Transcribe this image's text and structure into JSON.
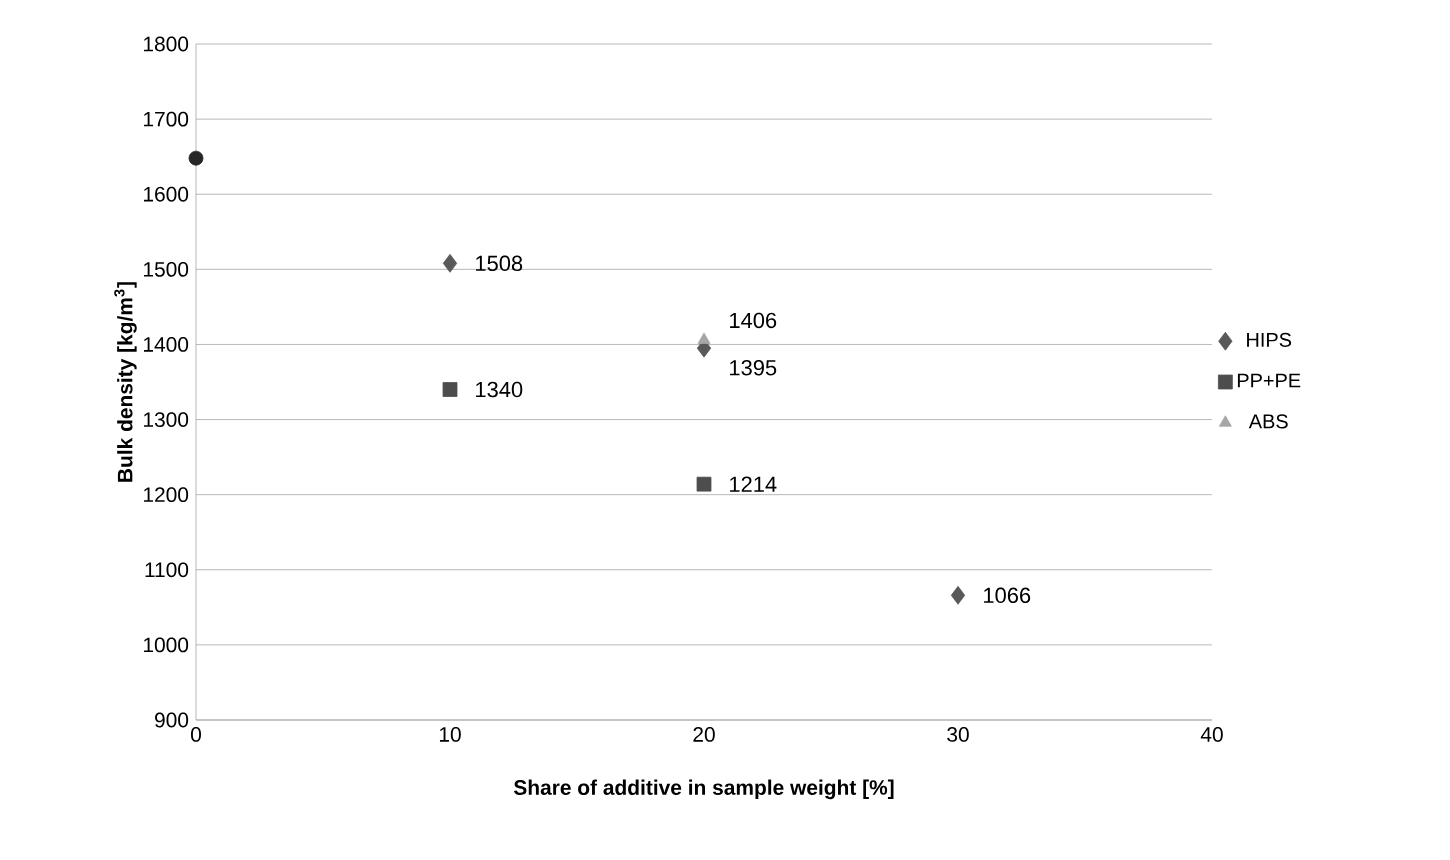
{
  "chart_data": {
    "type": "scatter",
    "xlabel": "Share of additive in sample weight [%]",
    "ylabel": "Bulk density [kg/m$^{3}$]",
    "xlim": [
      0,
      40
    ],
    "xticks": [
      0,
      10,
      20,
      30,
      40
    ],
    "ylim": [
      900,
      1800
    ],
    "yticks": [
      900,
      1000,
      1100,
      1200,
      1300,
      1400,
      1500,
      1600,
      1700,
      1800
    ],
    "grid": "y",
    "legend": "right",
    "series": [
      {
        "name": "HIPS",
        "color": "#595959",
        "marker": "diamond",
        "x": [
          10,
          20,
          30
        ],
        "values": [
          1508,
          1395,
          1066
        ],
        "value_labels": [
          "1508",
          "1395",
          "1066"
        ]
      },
      {
        "name": "PP+PE",
        "color": "#4d4d4d",
        "marker": "square",
        "x": [
          10,
          20
        ],
        "values": [
          1340,
          1214
        ],
        "value_labels": [
          "1340",
          "1214"
        ]
      },
      {
        "name": "ABS",
        "color": "#a6a6a6",
        "marker": "triangle",
        "x": [
          20
        ],
        "values": [
          1406
        ],
        "value_labels": [
          "1406"
        ]
      },
      {
        "color": "#262626",
        "marker": "circle",
        "x": [
          0
        ],
        "values": [
          1648
        ],
        "value_labels": [
          null
        ]
      }
    ]
  }
}
